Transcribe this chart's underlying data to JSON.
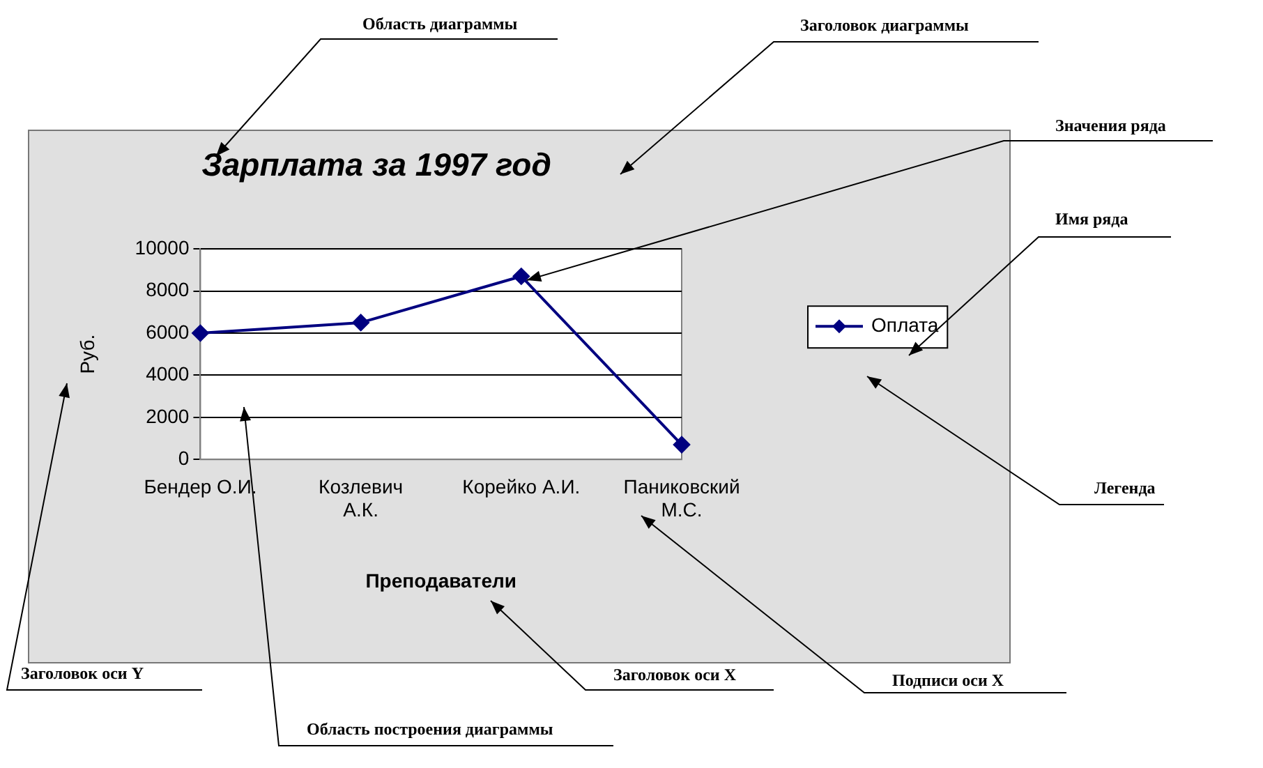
{
  "chart_data": {
    "type": "line",
    "title": "Зарплата за 1997 год",
    "xlabel": "Преподаватели",
    "ylabel": "Руб.",
    "categories": [
      "Бендер О.И.",
      "Козлевич А.К.",
      "Корейко А.И.",
      "Паниковский М.С."
    ],
    "series": [
      {
        "name": "Оплата",
        "color": "#000080",
        "values": [
          6000,
          6500,
          8700,
          700
        ]
      }
    ],
    "ylim": [
      0,
      10000
    ],
    "yticks": [
      0,
      2000,
      4000,
      6000,
      8000,
      10000
    ],
    "grid": "y",
    "legend": "right",
    "marker": "diamond",
    "line_style": "solid",
    "annotations": [
      "Область диаграммы",
      "Заголовок диаграммы",
      "Значения ряда",
      "Имя ряда",
      "Легенда",
      "Подписи оси X",
      "Заголовок оси X",
      "Заголовок оси Y",
      "Область построения диаграммы"
    ]
  }
}
